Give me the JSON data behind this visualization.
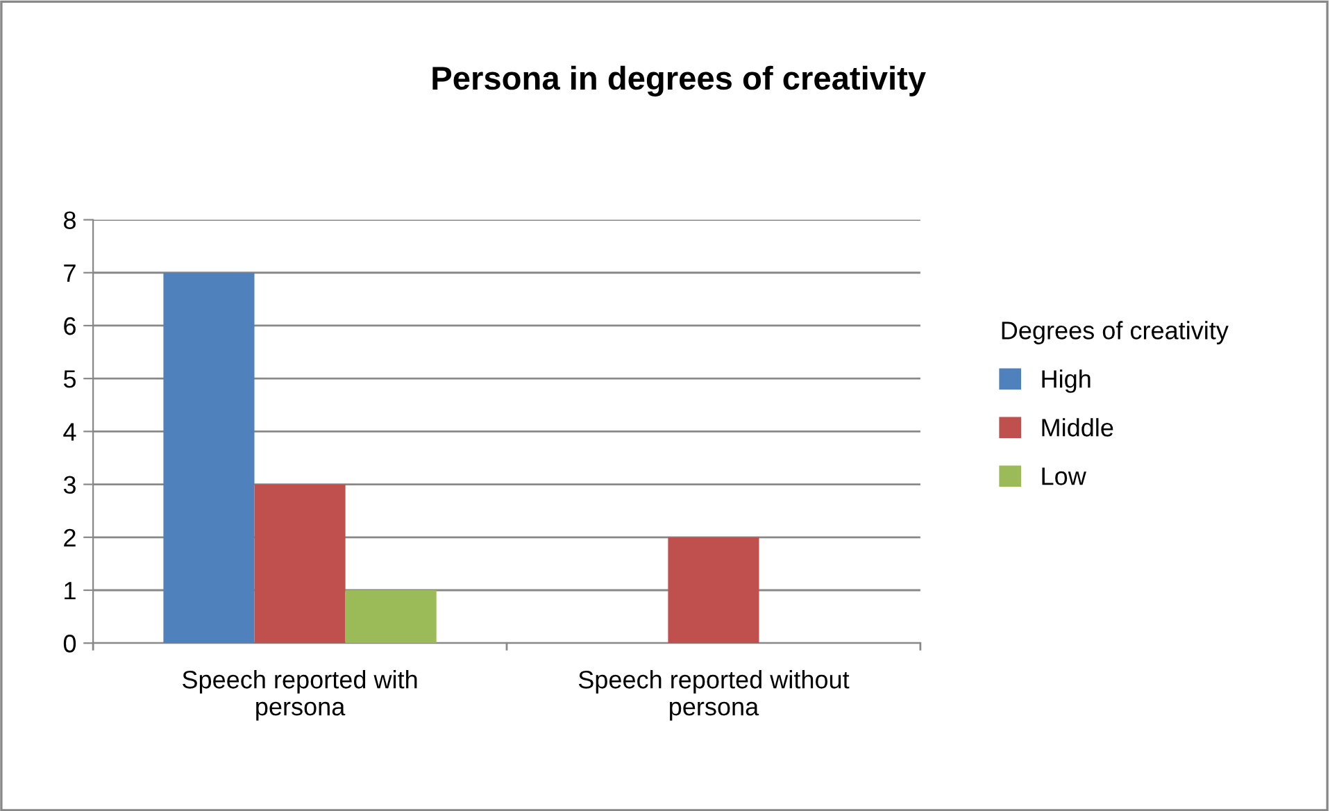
{
  "chart_data": {
    "type": "bar",
    "title": "Persona in degrees of creativity",
    "categories": [
      "Speech reported with\npersona",
      "Speech reported without\npersona"
    ],
    "series": [
      {
        "name": "High",
        "color": "#4f81bd",
        "values": [
          7,
          0
        ]
      },
      {
        "name": "Middle",
        "color": "#c0504d",
        "values": [
          3,
          2
        ]
      },
      {
        "name": "Low",
        "color": "#9bbb59",
        "values": [
          1,
          0
        ]
      }
    ],
    "legend_title": "Degrees of creativity",
    "legend": "right",
    "ylim": [
      0,
      8
    ],
    "yticks": [
      0,
      1,
      2,
      3,
      4,
      5,
      6,
      7,
      8
    ],
    "grid": "y"
  }
}
